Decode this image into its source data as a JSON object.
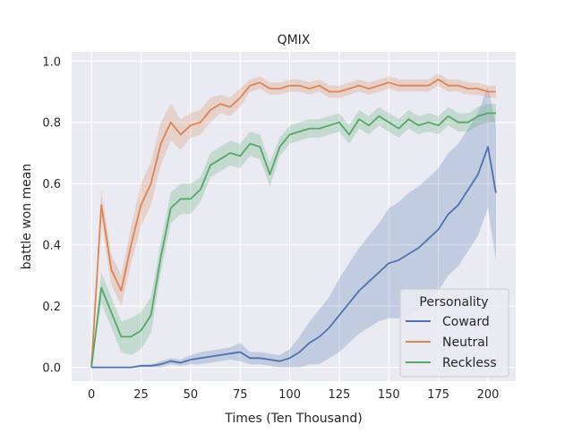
{
  "chart_data": {
    "type": "line",
    "title": "QMIX",
    "xlabel": "Times (Ten Thousand)",
    "ylabel": "battle won mean",
    "xlim": [
      -10,
      214
    ],
    "ylim": [
      -0.045,
      1.03
    ],
    "xticks": [
      0,
      25,
      50,
      75,
      100,
      125,
      150,
      175,
      200
    ],
    "yticks": [
      0.0,
      0.2,
      0.4,
      0.6,
      0.8,
      1.0
    ],
    "xtick_labels": [
      "0",
      "25",
      "50",
      "75",
      "100",
      "125",
      "150",
      "175",
      "200"
    ],
    "ytick_labels": [
      "0.0",
      "0.2",
      "0.4",
      "0.6",
      "0.8",
      "1.0"
    ],
    "grid": true,
    "legend": {
      "title": "Personality",
      "position": "lower-right"
    },
    "x": [
      0,
      5,
      10,
      15,
      20,
      25,
      30,
      35,
      40,
      45,
      50,
      55,
      60,
      65,
      70,
      75,
      80,
      85,
      90,
      95,
      100,
      105,
      110,
      115,
      120,
      125,
      130,
      135,
      140,
      145,
      150,
      155,
      160,
      165,
      170,
      175,
      180,
      185,
      190,
      195,
      200,
      204
    ],
    "series": [
      {
        "name": "Coward",
        "color": "#4c72b0",
        "values": [
          0.0,
          0.0,
          0.0,
          0.0,
          0.0,
          0.005,
          0.005,
          0.01,
          0.02,
          0.015,
          0.025,
          0.03,
          0.035,
          0.04,
          0.045,
          0.05,
          0.03,
          0.03,
          0.025,
          0.02,
          0.03,
          0.05,
          0.08,
          0.1,
          0.13,
          0.17,
          0.21,
          0.25,
          0.28,
          0.31,
          0.34,
          0.35,
          0.37,
          0.39,
          0.42,
          0.45,
          0.5,
          0.53,
          0.58,
          0.63,
          0.72,
          0.57
        ],
        "ci_width": [
          0.0,
          0.0,
          0.0,
          0.0,
          0.0,
          0.005,
          0.005,
          0.01,
          0.01,
          0.01,
          0.015,
          0.02,
          0.02,
          0.02,
          0.02,
          0.03,
          0.02,
          0.02,
          0.02,
          0.02,
          0.03,
          0.05,
          0.07,
          0.09,
          0.1,
          0.12,
          0.13,
          0.14,
          0.15,
          0.16,
          0.18,
          0.19,
          0.2,
          0.2,
          0.2,
          0.2,
          0.2,
          0.2,
          0.2,
          0.2,
          0.2,
          0.22
        ]
      },
      {
        "name": "Neutral",
        "color": "#dd8452",
        "values": [
          0.0,
          0.53,
          0.32,
          0.25,
          0.4,
          0.53,
          0.6,
          0.73,
          0.8,
          0.76,
          0.79,
          0.8,
          0.84,
          0.86,
          0.85,
          0.88,
          0.92,
          0.93,
          0.91,
          0.91,
          0.92,
          0.92,
          0.91,
          0.92,
          0.9,
          0.9,
          0.91,
          0.92,
          0.91,
          0.92,
          0.93,
          0.92,
          0.92,
          0.92,
          0.92,
          0.94,
          0.92,
          0.92,
          0.91,
          0.91,
          0.9,
          0.9
        ],
        "ci_width": [
          0.0,
          0.05,
          0.05,
          0.05,
          0.06,
          0.07,
          0.07,
          0.07,
          0.06,
          0.05,
          0.04,
          0.04,
          0.04,
          0.03,
          0.03,
          0.03,
          0.02,
          0.02,
          0.02,
          0.02,
          0.02,
          0.02,
          0.02,
          0.02,
          0.02,
          0.02,
          0.02,
          0.02,
          0.02,
          0.02,
          0.02,
          0.02,
          0.02,
          0.02,
          0.02,
          0.02,
          0.02,
          0.02,
          0.02,
          0.02,
          0.02,
          0.02
        ]
      },
      {
        "name": "Reckless",
        "color": "#55a868",
        "values": [
          0.0,
          0.26,
          0.18,
          0.1,
          0.1,
          0.12,
          0.17,
          0.36,
          0.52,
          0.55,
          0.55,
          0.58,
          0.66,
          0.68,
          0.7,
          0.69,
          0.73,
          0.72,
          0.63,
          0.72,
          0.76,
          0.77,
          0.78,
          0.78,
          0.79,
          0.8,
          0.76,
          0.81,
          0.79,
          0.82,
          0.8,
          0.78,
          0.81,
          0.79,
          0.8,
          0.79,
          0.82,
          0.8,
          0.8,
          0.82,
          0.83,
          0.83
        ],
        "ci_width": [
          0.0,
          0.05,
          0.05,
          0.05,
          0.06,
          0.06,
          0.06,
          0.05,
          0.05,
          0.05,
          0.05,
          0.04,
          0.04,
          0.04,
          0.04,
          0.04,
          0.04,
          0.04,
          0.04,
          0.03,
          0.03,
          0.03,
          0.03,
          0.03,
          0.03,
          0.03,
          0.03,
          0.03,
          0.03,
          0.03,
          0.03,
          0.03,
          0.03,
          0.03,
          0.03,
          0.03,
          0.03,
          0.03,
          0.03,
          0.03,
          0.03,
          0.03
        ]
      }
    ]
  }
}
